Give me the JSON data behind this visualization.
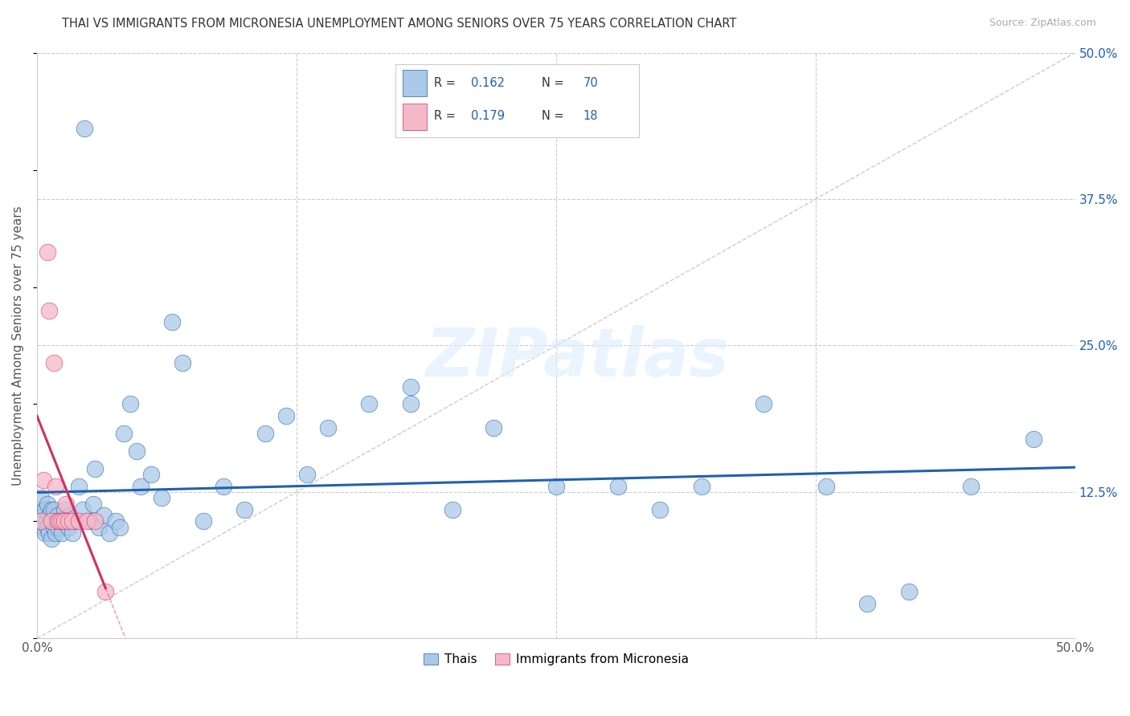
{
  "title": "THAI VS IMMIGRANTS FROM MICRONESIA UNEMPLOYMENT AMONG SENIORS OVER 75 YEARS CORRELATION CHART",
  "source": "Source: ZipAtlas.com",
  "ylabel": "Unemployment Among Seniors over 75 years",
  "xlim": [
    0,
    0.5
  ],
  "ylim": [
    0,
    0.5
  ],
  "color_blue": "#aac9e8",
  "color_pink": "#f5b8c8",
  "color_trendline_blue": "#2060b0",
  "color_trendline_pink": "#d03060",
  "color_diagonal": "#cccccc",
  "legend_label1": "Thais",
  "legend_label2": "Immigrants from Micronesia",
  "watermark": "ZIPatlas",
  "thai_x": [
    0.001,
    0.002,
    0.002,
    0.003,
    0.003,
    0.004,
    0.004,
    0.005,
    0.005,
    0.005,
    0.006,
    0.006,
    0.007,
    0.007,
    0.007,
    0.008,
    0.008,
    0.009,
    0.009,
    0.01,
    0.01,
    0.011,
    0.012,
    0.013,
    0.014,
    0.015,
    0.016,
    0.017,
    0.018,
    0.02,
    0.022,
    0.025,
    0.027,
    0.03,
    0.032,
    0.035,
    0.038,
    0.04,
    0.042,
    0.045,
    0.048,
    0.05,
    0.055,
    0.06,
    0.065,
    0.07,
    0.08,
    0.09,
    0.1,
    0.11,
    0.12,
    0.13,
    0.14,
    0.16,
    0.18,
    0.2,
    0.22,
    0.25,
    0.28,
    0.3,
    0.32,
    0.35,
    0.38,
    0.4,
    0.42,
    0.45,
    0.48,
    0.18,
    0.023,
    0.028
  ],
  "thai_y": [
    0.11,
    0.1,
    0.12,
    0.095,
    0.105,
    0.11,
    0.09,
    0.1,
    0.115,
    0.095,
    0.105,
    0.09,
    0.1,
    0.11,
    0.085,
    0.095,
    0.11,
    0.1,
    0.09,
    0.105,
    0.095,
    0.1,
    0.09,
    0.11,
    0.1,
    0.095,
    0.105,
    0.09,
    0.1,
    0.13,
    0.11,
    0.1,
    0.115,
    0.095,
    0.105,
    0.09,
    0.1,
    0.095,
    0.175,
    0.2,
    0.16,
    0.13,
    0.14,
    0.12,
    0.27,
    0.235,
    0.1,
    0.13,
    0.11,
    0.175,
    0.19,
    0.14,
    0.18,
    0.2,
    0.2,
    0.11,
    0.18,
    0.13,
    0.13,
    0.11,
    0.13,
    0.2,
    0.13,
    0.03,
    0.04,
    0.13,
    0.17,
    0.215,
    0.435,
    0.145
  ],
  "micronesia_x": [
    0.002,
    0.003,
    0.005,
    0.006,
    0.007,
    0.008,
    0.009,
    0.01,
    0.011,
    0.012,
    0.013,
    0.014,
    0.015,
    0.017,
    0.02,
    0.024,
    0.028,
    0.033
  ],
  "micronesia_y": [
    0.1,
    0.135,
    0.33,
    0.28,
    0.1,
    0.235,
    0.13,
    0.1,
    0.1,
    0.1,
    0.1,
    0.115,
    0.1,
    0.1,
    0.1,
    0.1,
    0.1,
    0.04
  ]
}
